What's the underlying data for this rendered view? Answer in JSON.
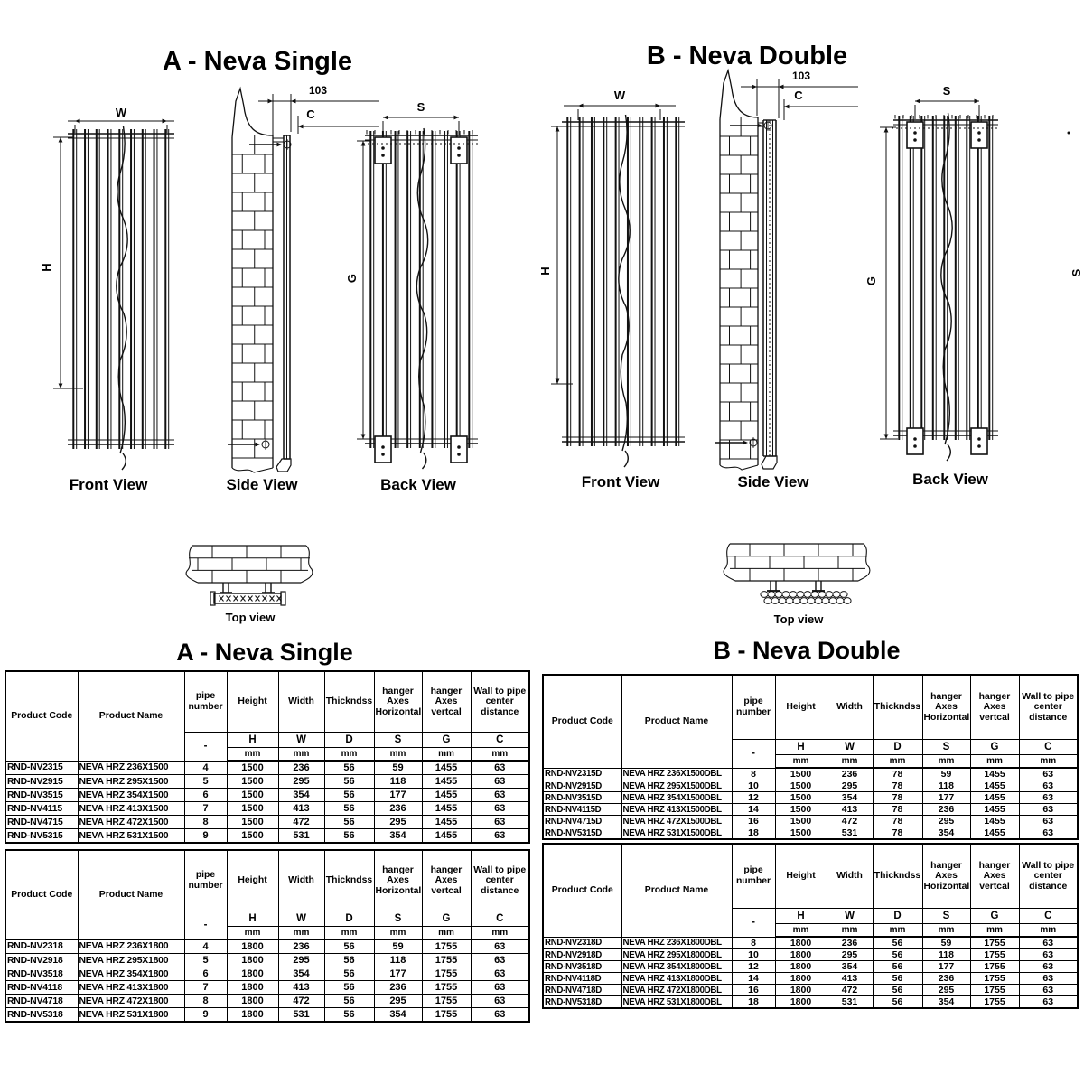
{
  "section_a": {
    "title": "A - Neva Single",
    "front_label": "Front View",
    "side_label": "Side View",
    "back_label": "Back View",
    "top_label": "Top view",
    "dim_w": "W",
    "dim_h": "H",
    "dim_s": "S",
    "dim_g": "G",
    "dim_c": "C",
    "dim_offset": "103"
  },
  "section_b": {
    "title": "B - Neva Double",
    "front_label": "Front View",
    "side_label": "Side View",
    "back_label": "Back View",
    "top_label": "Top view",
    "dim_w": "W",
    "dim_h": "H",
    "dim_s": "S",
    "dim_g": "G",
    "dim_c": "C",
    "dim_offset": "103",
    "edge_dim_s": "S"
  },
  "spec_tables": {
    "a_title": "A - Neva Single",
    "b_title": "B - Neva Double",
    "headers": {
      "product_code": "Product Code",
      "product_name": "Product Name",
      "pipe_number": "pipe number",
      "height": "Height",
      "width": "Width",
      "thickness": "Thickndss",
      "hanger_h": "hanger Axes Horizontal",
      "hanger_v": "hanger Axes vertcal",
      "wall_dist": "Wall to pipe center distance",
      "dash": "-",
      "h": "H",
      "w": "W",
      "d": "D",
      "s": "S",
      "g": "G",
      "c": "C",
      "mm": "mm"
    },
    "a1500_rows": [
      [
        "RND-NV2315",
        "NEVA HRZ 236X1500",
        "4",
        "1500",
        "236",
        "56",
        "59",
        "1455",
        "63"
      ],
      [
        "RND-NV2915",
        "NEVA HRZ 295X1500",
        "5",
        "1500",
        "295",
        "56",
        "118",
        "1455",
        "63"
      ],
      [
        "RND-NV3515",
        "NEVA HRZ 354X1500",
        "6",
        "1500",
        "354",
        "56",
        "177",
        "1455",
        "63"
      ],
      [
        "RND-NV4115",
        "NEVA HRZ 413X1500",
        "7",
        "1500",
        "413",
        "56",
        "236",
        "1455",
        "63"
      ],
      [
        "RND-NV4715",
        "NEVA HRZ 472X1500",
        "8",
        "1500",
        "472",
        "56",
        "295",
        "1455",
        "63"
      ],
      [
        "RND-NV5315",
        "NEVA HRZ 531X1500",
        "9",
        "1500",
        "531",
        "56",
        "354",
        "1455",
        "63"
      ]
    ],
    "a1800_rows": [
      [
        "RND-NV2318",
        "NEVA HRZ 236X1800",
        "4",
        "1800",
        "236",
        "56",
        "59",
        "1755",
        "63"
      ],
      [
        "RND-NV2918",
        "NEVA HRZ 295X1800",
        "5",
        "1800",
        "295",
        "56",
        "118",
        "1755",
        "63"
      ],
      [
        "RND-NV3518",
        "NEVA HRZ 354X1800",
        "6",
        "1800",
        "354",
        "56",
        "177",
        "1755",
        "63"
      ],
      [
        "RND-NV4118",
        "NEVA HRZ 413X1800",
        "7",
        "1800",
        "413",
        "56",
        "236",
        "1755",
        "63"
      ],
      [
        "RND-NV4718",
        "NEVA HRZ 472X1800",
        "8",
        "1800",
        "472",
        "56",
        "295",
        "1755",
        "63"
      ],
      [
        "RND-NV5318",
        "NEVA HRZ 531X1800",
        "9",
        "1800",
        "531",
        "56",
        "354",
        "1755",
        "63"
      ]
    ],
    "b1500_rows": [
      [
        "RND-NV2315D",
        "NEVA HRZ 236X1500DBL",
        "8",
        "1500",
        "236",
        "78",
        "59",
        "1455",
        "63"
      ],
      [
        "RND-NV2915D",
        "NEVA HRZ 295X1500DBL",
        "10",
        "1500",
        "295",
        "78",
        "118",
        "1455",
        "63"
      ],
      [
        "RND-NV3515D",
        "NEVA HRZ 354X1500DBL",
        "12",
        "1500",
        "354",
        "78",
        "177",
        "1455",
        "63"
      ],
      [
        "RND-NV4115D",
        "NEVA HRZ 413X1500DBL",
        "14",
        "1500",
        "413",
        "78",
        "236",
        "1455",
        "63"
      ],
      [
        "RND-NV4715D",
        "NEVA HRZ 472X1500DBL",
        "16",
        "1500",
        "472",
        "78",
        "295",
        "1455",
        "63"
      ],
      [
        "RND-NV5315D",
        "NEVA HRZ 531X1500DBL",
        "18",
        "1500",
        "531",
        "78",
        "354",
        "1455",
        "63"
      ]
    ],
    "b1800_rows": [
      [
        "RND-NV2318D",
        "NEVA HRZ 236X1800DBL",
        "8",
        "1800",
        "236",
        "56",
        "59",
        "1755",
        "63"
      ],
      [
        "RND-NV2918D",
        "NEVA HRZ 295X1800DBL",
        "10",
        "1800",
        "295",
        "56",
        "118",
        "1755",
        "63"
      ],
      [
        "RND-NV3518D",
        "NEVA HRZ 354X1800DBL",
        "12",
        "1800",
        "354",
        "56",
        "177",
        "1755",
        "63"
      ],
      [
        "RND-NV4118D",
        "NEVA HRZ 413X1800DBL",
        "14",
        "1800",
        "413",
        "56",
        "236",
        "1755",
        "63"
      ],
      [
        "RND-NV4718D",
        "NEVA HRZ 472X1800DBL",
        "16",
        "1800",
        "472",
        "56",
        "295",
        "1755",
        "63"
      ],
      [
        "RND-NV5318D",
        "NEVA HRZ 531X1800DBL",
        "18",
        "1800",
        "531",
        "56",
        "354",
        "1755",
        "63"
      ]
    ]
  }
}
